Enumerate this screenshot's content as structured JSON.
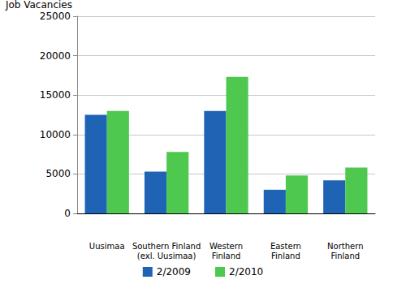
{
  "chart_data": {
    "type": "bar",
    "y_label": "Job Vacancies",
    "categories": [
      "Uusimaa",
      "Southern Finland\n(exl. Uusimaa)",
      "Western\nFinland",
      "Eastern\nFinland",
      "Northern\nFinland"
    ],
    "series": [
      {
        "name": "2/2009",
        "color": "#1f64b4",
        "values": [
          12500,
          5300,
          13000,
          3000,
          4200
        ]
      },
      {
        "name": "2/2010",
        "color": "#4ec84e",
        "values": [
          13000,
          7800,
          17300,
          4800,
          5800
        ]
      }
    ],
    "ylim": [
      0,
      25000
    ],
    "yticks": [
      0,
      5000,
      10000,
      15000,
      20000,
      25000
    ],
    "grid": true,
    "legend": "bottom"
  }
}
